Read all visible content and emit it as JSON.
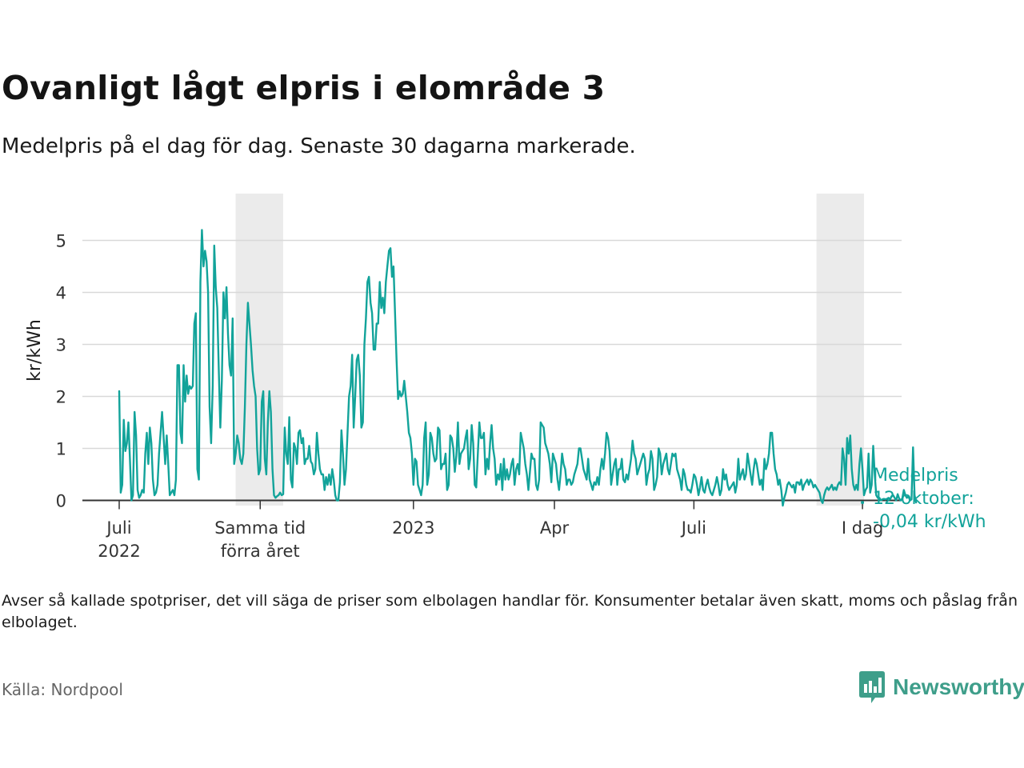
{
  "title": "Ovanligt lågt elpris i elområde 3",
  "subtitle": "Medelpris på el dag för dag.  Senaste 30 dagarna markerade.",
  "note": "Avser så kallade spotpriser, det vill säga de priser som elbolagen handlar för. Konsumenter betalar även skatt, moms och påslag från elbolaget.",
  "source": "Källa: Nordpool",
  "brand": {
    "name": "Newsworthy",
    "icon": "newsworthy-logo-icon"
  },
  "colors": {
    "line": "#12a39a",
    "shade": "#ebebeb",
    "grid": "#d9d9d9",
    "axis": "#333333",
    "brand": "#3e9e8a"
  },
  "chart_data": {
    "type": "line",
    "ylabel": "kr/kWh",
    "ylim": [
      -0.1,
      5.9
    ],
    "yticks": [
      0,
      1,
      2,
      3,
      4,
      5
    ],
    "ytick_labels": [
      "0",
      "1",
      "2",
      "3",
      "4",
      "5"
    ],
    "xlim": [
      0,
      486
    ],
    "xticks": [
      {
        "x": 0,
        "label": [
          "Juli",
          "2022"
        ]
      },
      {
        "x": 92,
        "label": [
          "Samma tid",
          "förra året"
        ]
      },
      {
        "x": 192,
        "label": [
          "2023"
        ]
      },
      {
        "x": 284,
        "label": [
          "Apr"
        ]
      },
      {
        "x": 375,
        "label": [
          "Juli"
        ]
      },
      {
        "x": 485,
        "label": [
          "I dag"
        ]
      }
    ],
    "shaded_periods": [
      {
        "from": 76,
        "to": 107,
        "label": "Samma tid förra året"
      },
      {
        "from": 455,
        "to": 486,
        "label": "Senaste 30 dagarna"
      }
    ],
    "annotation": {
      "x": 485,
      "y": -0.04,
      "lines": [
        "Medelpris",
        "12 oktober:",
        "-0,04 kr/kWh"
      ]
    },
    "series": [
      {
        "name": "Medelpris",
        "x_start": 0,
        "step_days": 1,
        "values": [
          2.1,
          0.15,
          0.3,
          1.55,
          0.95,
          1.1,
          1.5,
          0.8,
          0.0,
          0.1,
          1.7,
          1.25,
          0.2,
          0.05,
          0.1,
          0.2,
          0.15,
          0.9,
          1.3,
          0.7,
          1.4,
          1.1,
          0.4,
          0.1,
          0.15,
          0.3,
          0.9,
          1.3,
          1.7,
          1.2,
          0.7,
          1.25,
          0.7,
          0.1,
          0.15,
          0.2,
          0.1,
          0.4,
          2.6,
          2.6,
          1.3,
          1.1,
          2.6,
          1.9,
          2.4,
          2.05,
          2.2,
          2.15,
          2.2,
          3.4,
          3.6,
          0.6,
          0.4,
          4.2,
          5.2,
          4.5,
          4.8,
          4.6,
          4.0,
          1.8,
          1.1,
          2.2,
          4.9,
          4.1,
          3.7,
          2.5,
          1.4,
          2.3,
          4.0,
          3.5,
          4.1,
          3.2,
          2.6,
          2.4,
          3.5,
          0.7,
          0.9,
          1.25,
          1.1,
          0.8,
          0.7,
          0.9,
          1.8,
          3.0,
          3.8,
          3.4,
          3.0,
          2.5,
          2.2,
          2.0,
          1.0,
          0.5,
          0.6,
          1.9,
          2.1,
          0.8,
          0.5,
          1.5,
          2.1,
          1.7,
          0.6,
          0.1,
          0.05,
          0.08,
          0.1,
          0.15,
          0.1,
          0.12,
          1.4,
          0.9,
          0.7,
          1.6,
          0.4,
          0.25,
          1.1,
          1.0,
          0.7,
          1.3,
          1.35,
          1.1,
          1.2,
          0.7,
          0.8,
          0.8,
          1.05,
          0.75,
          0.7,
          0.5,
          0.6,
          1.3,
          0.9,
          0.6,
          0.5,
          0.5,
          0.2,
          0.45,
          0.3,
          0.5,
          0.3,
          0.6,
          0.4,
          0.1,
          0.0,
          0.0,
          0.35,
          1.35,
          0.9,
          0.3,
          0.6,
          1.3,
          2.0,
          2.2,
          2.8,
          1.4,
          2.0,
          2.7,
          2.8,
          2.4,
          1.4,
          1.5,
          3.0,
          3.5,
          4.2,
          4.3,
          3.8,
          3.6,
          2.9,
          2.9,
          3.4,
          3.4,
          4.2,
          3.7,
          3.9,
          3.6,
          4.2,
          4.5,
          4.8,
          4.85,
          4.3,
          4.5,
          3.6,
          2.7,
          1.95,
          2.1,
          2.0,
          2.05,
          2.3,
          2.0,
          1.7,
          1.3,
          1.2,
          0.9,
          0.3,
          0.8,
          0.75,
          0.3,
          0.2,
          0.1,
          0.3,
          1.2,
          1.5,
          0.3,
          0.5,
          1.3,
          1.2,
          0.9,
          0.75,
          0.8,
          1.4,
          1.35,
          0.6,
          0.7,
          0.7,
          0.9,
          0.2,
          0.3,
          1.25,
          1.2,
          1.0,
          0.55,
          0.85,
          1.5,
          0.7,
          0.9,
          0.95,
          1.0,
          1.2,
          1.35,
          0.6,
          0.8,
          1.45,
          1.1,
          0.3,
          0.25,
          0.9,
          1.5,
          1.2,
          1.2,
          1.3,
          0.5,
          0.8,
          0.6,
          1.1,
          1.45,
          1.0,
          0.8,
          0.3,
          0.5,
          0.4,
          0.7,
          0.2,
          0.8,
          0.4,
          0.6,
          0.4,
          0.5,
          0.7,
          0.8,
          0.3,
          0.6,
          0.7,
          0.5,
          1.3,
          1.15,
          1.0,
          0.7,
          0.5,
          0.2,
          0.55,
          0.9,
          0.8,
          0.8,
          0.3,
          0.2,
          0.4,
          1.5,
          1.45,
          1.4,
          1.1,
          1.0,
          0.9,
          0.7,
          0.35,
          0.9,
          0.8,
          0.7,
          0.4,
          0.2,
          0.5,
          0.9,
          0.7,
          0.6,
          0.3,
          0.4,
          0.4,
          0.3,
          0.35,
          0.5,
          0.6,
          0.7,
          1.0,
          1.0,
          0.8,
          0.6,
          0.5,
          0.4,
          0.8,
          0.4,
          0.3,
          0.2,
          0.35,
          0.3,
          0.45,
          0.3,
          0.6,
          0.8,
          0.6,
          0.9,
          1.3,
          1.2,
          0.95,
          0.3,
          0.5,
          0.7,
          0.8,
          0.3,
          0.6,
          0.6,
          0.8,
          0.4,
          0.35,
          0.5,
          0.4,
          0.6,
          0.8,
          1.15,
          0.9,
          0.8,
          0.5,
          0.6,
          0.7,
          0.8,
          0.9,
          0.8,
          0.3,
          0.5,
          0.6,
          0.95,
          0.8,
          0.2,
          0.3,
          0.45,
          1.0,
          0.9,
          0.5,
          0.7,
          0.8,
          0.9,
          0.6,
          0.5,
          0.7,
          0.9,
          0.85,
          0.9,
          0.6,
          0.5,
          0.4,
          0.2,
          0.6,
          0.5,
          0.3,
          0.2,
          0.2,
          0.15,
          0.3,
          0.5,
          0.45,
          0.3,
          0.1,
          0.25,
          0.45,
          0.2,
          0.15,
          0.3,
          0.4,
          0.25,
          0.15,
          0.1,
          0.2,
          0.3,
          0.45,
          0.3,
          0.1,
          0.2,
          0.6,
          0.4,
          0.5,
          0.3,
          0.2,
          0.25,
          0.3,
          0.35,
          0.15,
          0.3,
          0.8,
          0.4,
          0.5,
          0.6,
          0.4,
          0.5,
          0.9,
          0.7,
          0.5,
          0.3,
          0.6,
          0.8,
          0.7,
          0.5,
          0.3,
          0.4,
          0.2,
          0.8,
          0.6,
          0.7,
          0.9,
          1.3,
          1.3,
          0.9,
          0.6,
          0.5,
          0.3,
          0.4,
          0.2,
          -0.1,
          0.05,
          0.15,
          0.3,
          0.35,
          0.3,
          0.25,
          0.3,
          0.15,
          0.35,
          0.35,
          0.3,
          0.4,
          0.2,
          0.3,
          0.35,
          0.4,
          0.3,
          0.4,
          0.35,
          0.25,
          0.3,
          0.25,
          0.2,
          0.15,
          0.0,
          -0.05,
          0.1,
          0.2,
          0.25,
          0.2,
          0.25,
          0.3,
          0.2,
          0.25,
          0.2,
          0.3,
          0.35,
          0.3,
          1.0,
          0.8,
          0.3,
          1.2,
          0.9,
          1.25,
          0.6,
          0.3,
          0.2,
          0.3,
          0.2,
          0.7,
          1.0,
          0.6,
          0.1,
          0.2,
          0.25,
          0.9,
          0.15,
          0.3,
          1.05,
          0.5,
          0.1,
          0.05,
          0.05,
          0.0,
          0.02,
          0.03,
          0.02,
          0.03,
          0.05,
          0.02,
          0.08,
          0.1,
          0.05,
          0.0,
          0.12,
          0.03,
          0.0,
          0.04,
          0.2,
          0.1,
          0.05,
          0.08,
          0.0,
          0.02,
          1.02,
          0.1,
          -0.04
        ]
      }
    ]
  }
}
